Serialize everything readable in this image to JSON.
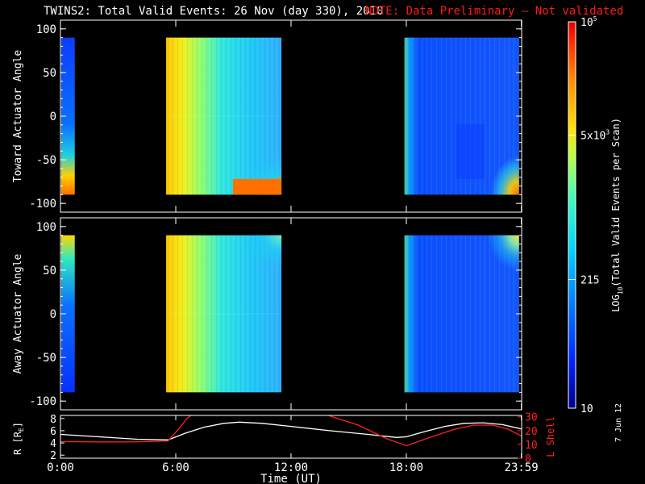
{
  "title": "TWINS2: Total Valid Events: 26 Nov (day 330), 2010",
  "note": "NOTE: Data Preliminary – Not validated",
  "datestamp": "7 Jun 12",
  "colors": {
    "background": "#000000",
    "axes": "#ffffff",
    "note": "#ff1a1a",
    "r_line": "#ffffff",
    "l_shell_line": "#ff2020"
  },
  "chart_data": [
    {
      "type": "heatmap",
      "panel": "toward",
      "ylabel": "Toward Actuator Angle",
      "xlim": [
        0,
        24
      ],
      "ylim": [
        -110,
        110
      ],
      "yticks": [
        -100,
        -50,
        0,
        50,
        100
      ],
      "data_blocks": [
        {
          "t": [
            0.0,
            0.45
          ],
          "angle": [
            -90,
            90
          ],
          "level": "low-mid, rising toward -90"
        },
        {
          "t": [
            5.5,
            11.5
          ],
          "angle": [
            -90,
            90
          ],
          "level": "high to mid, peak near -80"
        },
        {
          "t": [
            17.9,
            23.99
          ],
          "angle": [
            -90,
            90
          ],
          "level": "low, rising toward -80 after 23:00"
        }
      ]
    },
    {
      "type": "heatmap",
      "panel": "away",
      "ylabel": "Away Actuator Angle",
      "xlim": [
        0,
        24
      ],
      "ylim": [
        -110,
        110
      ],
      "yticks": [
        -100,
        -50,
        0,
        50,
        100
      ],
      "data_blocks": [
        {
          "t": [
            0.0,
            0.45
          ],
          "angle": [
            -90,
            90
          ],
          "level": "low-mid, rising toward +90"
        },
        {
          "t": [
            5.5,
            11.5
          ],
          "angle": [
            -90,
            90
          ],
          "level": "high to mid"
        },
        {
          "t": [
            17.9,
            23.99
          ],
          "angle": [
            -90,
            90
          ],
          "level": "low, rising toward +90 after 22:00"
        }
      ]
    },
    {
      "type": "line",
      "panel": "orbit",
      "ylabel_left": "R [R",
      "ylabel_left_sub": "E",
      "ylabel_left_end": "]",
      "ylabel_right": "L Shell",
      "yticks_left": [
        2,
        4,
        6,
        8
      ],
      "yticks_right": [
        0,
        10,
        20,
        30
      ],
      "ylim_left": [
        1.5,
        8.5
      ],
      "ylim_right": [
        0,
        31
      ],
      "series": [
        {
          "axis": "left",
          "t": [
            0,
            2,
            4,
            5.6,
            6.5,
            7.5,
            8.5,
            9.3,
            10.5,
            12,
            14,
            16,
            17.5,
            18,
            19,
            20,
            21,
            22,
            23,
            23.99
          ],
          "values": [
            5.4,
            5.0,
            4.6,
            4.5,
            5.6,
            6.6,
            7.2,
            7.4,
            7.2,
            6.7,
            6.0,
            5.4,
            4.9,
            5.0,
            5.9,
            6.7,
            7.2,
            7.3,
            7.0,
            6.3
          ]
        },
        {
          "axis": "right",
          "t": [
            0,
            2,
            4,
            5.6,
            6.2,
            6.6,
            7.0
          ],
          "values": [
            12.0,
            11.8,
            11.9,
            12.5,
            22,
            29,
            33
          ]
        },
        {
          "axis": "right",
          "t": [
            13.5,
            15.5,
            17.0,
            18.0,
            19.0,
            20.5,
            21.5,
            22.5,
            23.3,
            23.99
          ],
          "values": [
            33,
            24,
            14,
            9,
            14,
            21,
            24,
            24,
            21,
            16
          ]
        }
      ]
    }
  ],
  "x_axis": {
    "label": "Time (UT)",
    "tick_hours": [
      0,
      6,
      12,
      18,
      23.9833
    ],
    "tick_labels": [
      "0:00",
      "6:00",
      "12:00",
      "18:00",
      "23:59"
    ]
  },
  "colorbar": {
    "label_log": "LOG",
    "label_sub": "10",
    "label_rest": "(Total Valid Events per Scan)",
    "ticks": [
      {
        "base": "10",
        "exp": "",
        "label": "10",
        "level": 0.0
      },
      {
        "base": "",
        "exp": "",
        "label": "215",
        "level": 0.333
      },
      {
        "base": "5x10",
        "exp": "3",
        "label": "",
        "level": 0.707
      },
      {
        "base": "10",
        "exp": "5",
        "label": "",
        "level": 1.0
      }
    ]
  }
}
